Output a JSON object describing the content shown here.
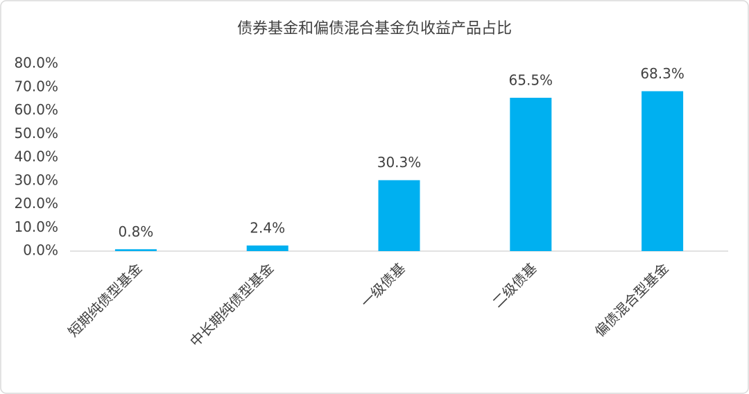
{
  "chart_data": {
    "type": "bar",
    "title": "债券基金和偏债混合基金负收益产品占比",
    "categories": [
      "短期纯债型基金",
      "中长期纯债型基金",
      "一级债基",
      "二级债基",
      "偏债混合型基金"
    ],
    "values": [
      0.8,
      2.4,
      30.3,
      65.5,
      68.3
    ],
    "value_labels": [
      "0.8%",
      "2.4%",
      "30.3%",
      "65.5%",
      "68.3%"
    ],
    "color": "#00b0f0",
    "ylim": [
      0,
      80
    ],
    "yticks": [
      {
        "value": 0,
        "label": "0.0%"
      },
      {
        "value": 10,
        "label": "10.0%"
      },
      {
        "value": 20,
        "label": "20.0%"
      },
      {
        "value": 30,
        "label": "30.0%"
      },
      {
        "value": 40,
        "label": "40.0%"
      },
      {
        "value": 50,
        "label": "50.0%"
      },
      {
        "value": 60,
        "label": "60.0%"
      },
      {
        "value": 70,
        "label": "70.0%"
      },
      {
        "value": 80,
        "label": "80.0%"
      }
    ],
    "grid": false
  }
}
